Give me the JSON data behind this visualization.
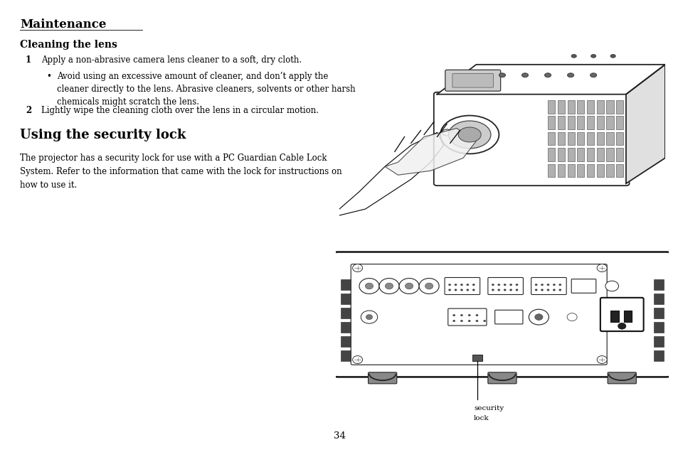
{
  "bg_color": "#ffffff",
  "title": "Maintenance",
  "section1_title": "Cleaning the lens",
  "step1_num": "1",
  "step1_text": "Apply a non-abrasive camera lens cleaner to a soft, dry cloth.",
  "bullet_char": "•",
  "bullet_text": "Avoid using an excessive amount of cleaner, and don’t apply the\ncleaner directly to the lens. Abrasive cleaners, solvents or other harsh\nchemicals might scratch the lens.",
  "step2_num": "2",
  "step2_text": "Lightly wipe the cleaning cloth over the lens in a circular motion.",
  "section2_title": "Using the security lock",
  "section2_body": "The projector has a security lock for use with a PC Guardian Cable Lock\nSystem. Refer to the information that came with the lock for instructions on\nhow to use it.",
  "security_label_line1": "security",
  "security_label_line2": "lock",
  "page_number": "34",
  "title_fontsize": 12,
  "section1_fontsize": 10,
  "section2_fontsize": 13,
  "body_fontsize": 8.5,
  "step_fontsize": 8.5
}
